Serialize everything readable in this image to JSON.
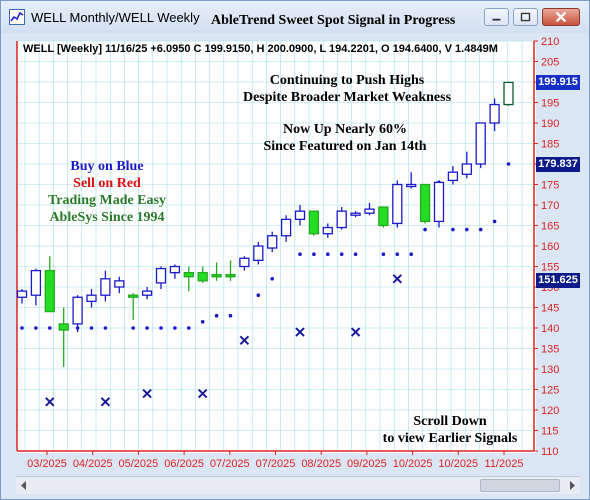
{
  "window": {
    "title": "WELL Monthly/WELL Weekly",
    "chart_title": "AbleTrend Sweet Spot Signal in Progress"
  },
  "header": {
    "ohlc": "WELL [Weekly] 11/16/25 +6.0950 C 199.9150, H 200.0900, L 194.2201, O 194.6400, V 1.4849M"
  },
  "annotations": {
    "headline_1": "Continuing to Push Highs",
    "headline_2": "Despite Broader Market Weakness",
    "gain_1": "Now Up Nearly 60%",
    "gain_2": "Since Featured on Jan 14th",
    "buy": "Buy on Blue",
    "sell": "Sell on Red",
    "easy": "Trading Made Easy",
    "ablesys": "AbleSys Since 1994",
    "scroll_1": "Scroll Down",
    "scroll_2": "to view Earlier Signals"
  },
  "price_tags": [
    {
      "label": "199.915",
      "value": 199.915,
      "color": "#1530c8"
    },
    {
      "label": "179.837",
      "value": 179.837,
      "color": "#0d1a8a"
    },
    {
      "label": "151.625",
      "value": 151.625,
      "color": "#0d1a8a"
    }
  ],
  "colors": {
    "blue": "#1a1acc",
    "red": "#e01010",
    "green": "#22dd22",
    "dark_green": "#2a7a2a",
    "grid": "#9fe0e8",
    "axis": "#dd2222"
  },
  "chart_data": {
    "type": "candlestick",
    "title": "AbleTrend Sweet Spot Signal in Progress",
    "y_axis": {
      "min": 110,
      "max": 210,
      "ticks": [
        210,
        205,
        200,
        195,
        190,
        185,
        180,
        175,
        170,
        165,
        160,
        155,
        150,
        145,
        140,
        135,
        130,
        125,
        120,
        115,
        110
      ]
    },
    "x_labels": [
      "03/2025",
      "04/2025",
      "05/2025",
      "06/2025",
      "07/2025",
      "07/2025",
      "08/2025",
      "09/2025",
      "10/2025",
      "10/2025",
      "11/2025"
    ],
    "candles": [
      {
        "o": 147.5,
        "h": 149.5,
        "l": 146.0,
        "c": 149.0,
        "color": "blue"
      },
      {
        "o": 148.0,
        "h": 154.5,
        "l": 145.5,
        "c": 154.0,
        "color": "blue"
      },
      {
        "o": 154.0,
        "h": 157.5,
        "l": 144.0,
        "c": 144.0,
        "color": "green"
      },
      {
        "o": 139.5,
        "h": 145.0,
        "l": 130.5,
        "c": 141.0,
        "color": "green"
      },
      {
        "o": 141.0,
        "h": 148.0,
        "l": 139.0,
        "c": 147.5,
        "color": "blue"
      },
      {
        "o": 146.5,
        "h": 149.5,
        "l": 145.0,
        "c": 148.0,
        "color": "blue"
      },
      {
        "o": 148.0,
        "h": 154.0,
        "l": 146.5,
        "c": 152.0,
        "color": "blue"
      },
      {
        "o": 150.0,
        "h": 152.5,
        "l": 148.5,
        "c": 151.5,
        "color": "blue"
      },
      {
        "o": 148.0,
        "h": 148.5,
        "l": 142.0,
        "c": 148.0,
        "color": "green"
      },
      {
        "o": 148.0,
        "h": 150.0,
        "l": 147.0,
        "c": 149.0,
        "color": "blue"
      },
      {
        "o": 151.0,
        "h": 155.0,
        "l": 149.5,
        "c": 154.5,
        "color": "blue"
      },
      {
        "o": 153.5,
        "h": 155.5,
        "l": 152.0,
        "c": 155.0,
        "color": "blue"
      },
      {
        "o": 153.5,
        "h": 155.0,
        "l": 149.0,
        "c": 152.5,
        "color": "green"
      },
      {
        "o": 153.5,
        "h": 155.0,
        "l": 151.0,
        "c": 151.5,
        "color": "green"
      },
      {
        "o": 152.5,
        "h": 156.0,
        "l": 151.5,
        "c": 153.0,
        "color": "green"
      },
      {
        "o": 152.5,
        "h": 156.5,
        "l": 151.5,
        "c": 153.0,
        "color": "green"
      },
      {
        "o": 155.0,
        "h": 157.5,
        "l": 154.0,
        "c": 157.0,
        "color": "blue"
      },
      {
        "o": 156.5,
        "h": 161.0,
        "l": 155.5,
        "c": 160.0,
        "color": "blue"
      },
      {
        "o": 159.5,
        "h": 163.5,
        "l": 158.5,
        "c": 162.5,
        "color": "blue"
      },
      {
        "o": 162.5,
        "h": 167.5,
        "l": 161.0,
        "c": 166.5,
        "color": "blue"
      },
      {
        "o": 166.5,
        "h": 170.0,
        "l": 165.0,
        "c": 168.5,
        "color": "blue"
      },
      {
        "o": 168.5,
        "h": 168.5,
        "l": 162.5,
        "c": 163.0,
        "color": "green"
      },
      {
        "o": 163.0,
        "h": 165.5,
        "l": 162.0,
        "c": 164.5,
        "color": "blue"
      },
      {
        "o": 164.5,
        "h": 169.5,
        "l": 164.0,
        "c": 168.5,
        "color": "blue"
      },
      {
        "o": 168.0,
        "h": 168.5,
        "l": 167.0,
        "c": 168.0,
        "color": "blue"
      },
      {
        "o": 168.0,
        "h": 170.5,
        "l": 167.5,
        "c": 169.0,
        "color": "blue"
      },
      {
        "o": 169.5,
        "h": 169.5,
        "l": 164.5,
        "c": 165.0,
        "color": "green"
      },
      {
        "o": 165.5,
        "h": 176.0,
        "l": 164.5,
        "c": 175.0,
        "color": "blue"
      },
      {
        "o": 175.0,
        "h": 178.0,
        "l": 174.0,
        "c": 175.0,
        "color": "blue"
      },
      {
        "o": 175.0,
        "h": 175.0,
        "l": 165.5,
        "c": 166.0,
        "color": "green"
      },
      {
        "o": 166.0,
        "h": 176.0,
        "l": 164.5,
        "c": 175.5,
        "color": "blue"
      },
      {
        "o": 176.0,
        "h": 179.5,
        "l": 175.0,
        "c": 178.0,
        "color": "blue"
      },
      {
        "o": 177.5,
        "h": 183.0,
        "l": 176.5,
        "c": 180.0,
        "color": "blue"
      },
      {
        "o": 180.0,
        "h": 190.0,
        "l": 179.0,
        "c": 190.0,
        "color": "blue"
      },
      {
        "o": 190.0,
        "h": 196.0,
        "l": 188.0,
        "c": 194.5,
        "color": "blue"
      },
      {
        "o": 194.5,
        "h": 200.0,
        "l": 194.2,
        "c": 199.9,
        "color": "new"
      }
    ],
    "support_dots": [
      140,
      140,
      140,
      null,
      140,
      140,
      140,
      null,
      140,
      140,
      140,
      140,
      140,
      141.5,
      143,
      143,
      null,
      148,
      152,
      null,
      158,
      158,
      158,
      158,
      158,
      null,
      158,
      158,
      158,
      164,
      null,
      164,
      164,
      164,
      166,
      180
    ],
    "sell_x": [
      {
        "i": 2,
        "v": 122
      },
      {
        "i": 6,
        "v": 122
      },
      {
        "i": 9,
        "v": 124
      },
      {
        "i": 13,
        "v": 124
      },
      {
        "i": 16,
        "v": 137
      },
      {
        "i": 20,
        "v": 139
      },
      {
        "i": 24,
        "v": 139
      },
      {
        "i": 27,
        "v": 152
      }
    ],
    "extra_dots": [
      {
        "i": 30,
        "v": 175.5
      }
    ]
  }
}
